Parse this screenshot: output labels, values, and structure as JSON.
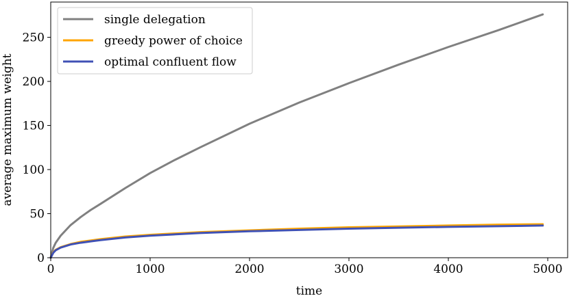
{
  "chart_data": {
    "type": "line",
    "xlabel": "time",
    "ylabel": "average maximum weight",
    "xlim": [
      0,
      5200
    ],
    "ylim": [
      0,
      290
    ],
    "xticks": [
      0,
      1000,
      2000,
      3000,
      4000,
      5000
    ],
    "yticks": [
      0,
      50,
      100,
      150,
      200,
      250
    ],
    "xtick_labels": [
      "0",
      "1000",
      "2000",
      "3000",
      "4000",
      "5000"
    ],
    "ytick_labels": [
      "0",
      "50",
      "100",
      "150",
      "200",
      "250"
    ],
    "grid": false,
    "legend_position": "top-left",
    "series": [
      {
        "name": "single delegation",
        "color": "#808080",
        "x": [
          0,
          25,
          50,
          100,
          200,
          300,
          400,
          500,
          750,
          1000,
          1250,
          1500,
          2000,
          2500,
          3000,
          3500,
          4000,
          4500,
          4950
        ],
        "y": [
          0,
          11,
          17,
          25,
          37,
          46,
          54,
          61,
          79,
          96,
          111,
          125,
          152,
          176,
          198,
          219,
          239,
          258,
          276
        ]
      },
      {
        "name": "greedy power of choice",
        "color": "#FFA500",
        "x": [
          0,
          25,
          50,
          100,
          200,
          300,
          400,
          500,
          750,
          1000,
          1500,
          2000,
          2500,
          3000,
          3500,
          4000,
          4500,
          4950
        ],
        "y": [
          0,
          6,
          9,
          12,
          15.5,
          18,
          19.5,
          21,
          24,
          26,
          29,
          31,
          33,
          34.5,
          35.5,
          36.5,
          37.5,
          38
        ]
      },
      {
        "name": "optimal confluent flow",
        "color": "#3F51B5",
        "x": [
          0,
          25,
          50,
          100,
          200,
          300,
          400,
          500,
          750,
          1000,
          1500,
          2000,
          2500,
          3000,
          3500,
          4000,
          4500,
          4950
        ],
        "y": [
          0,
          5.5,
          8.5,
          11.5,
          15,
          17,
          18.5,
          20,
          23,
          25,
          28,
          30,
          31.5,
          33,
          34,
          35,
          35.8,
          36.5
        ]
      }
    ]
  }
}
